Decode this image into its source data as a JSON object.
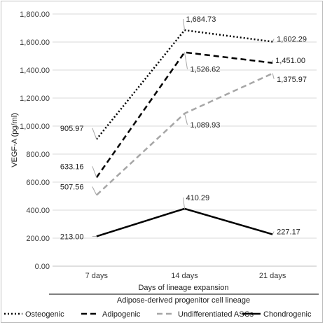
{
  "chart_data": {
    "type": "line",
    "title": "",
    "xlabel": "Days of lineage expansion",
    "ylabel": "VEGF-A (pg/ml)",
    "legend_title": "Adipose-derived progenitor cell lineage",
    "legend_position": "bottom",
    "categories": [
      "7 days",
      "14 days",
      "21 days"
    ],
    "ylim": [
      0,
      1800
    ],
    "yticks": [
      "0.00",
      "200.00",
      "400.00",
      "600.00",
      "800.00",
      "1,000.00",
      "1,200.00",
      "1,400.00",
      "1,600.00",
      "1,800.00"
    ],
    "grid": true,
    "series": [
      {
        "name": "Osteogenic",
        "values": [
          905.97,
          1684.73,
          1602.29
        ],
        "labels": [
          "905.97",
          "1,684.73",
          "1,602.29"
        ],
        "color": "#000000",
        "style": "dotted"
      },
      {
        "name": "Adipogenic",
        "values": [
          633.16,
          1526.62,
          1451.0
        ],
        "labels": [
          "633.16",
          "1,526.62",
          "1,451.00"
        ],
        "color": "#000000",
        "style": "dashed"
      },
      {
        "name": "Undifferentiated ASCs",
        "values": [
          507.56,
          1089.93,
          1375.97
        ],
        "labels": [
          "507.56",
          "1,089.93",
          "1,375.97"
        ],
        "color": "#a6a6a6",
        "style": "dashed"
      },
      {
        "name": "Chondrogenic",
        "values": [
          213.0,
          410.29,
          227.17
        ],
        "labels": [
          "213.00",
          "410.29",
          "227.17"
        ],
        "color": "#000000",
        "style": "solid"
      }
    ]
  }
}
